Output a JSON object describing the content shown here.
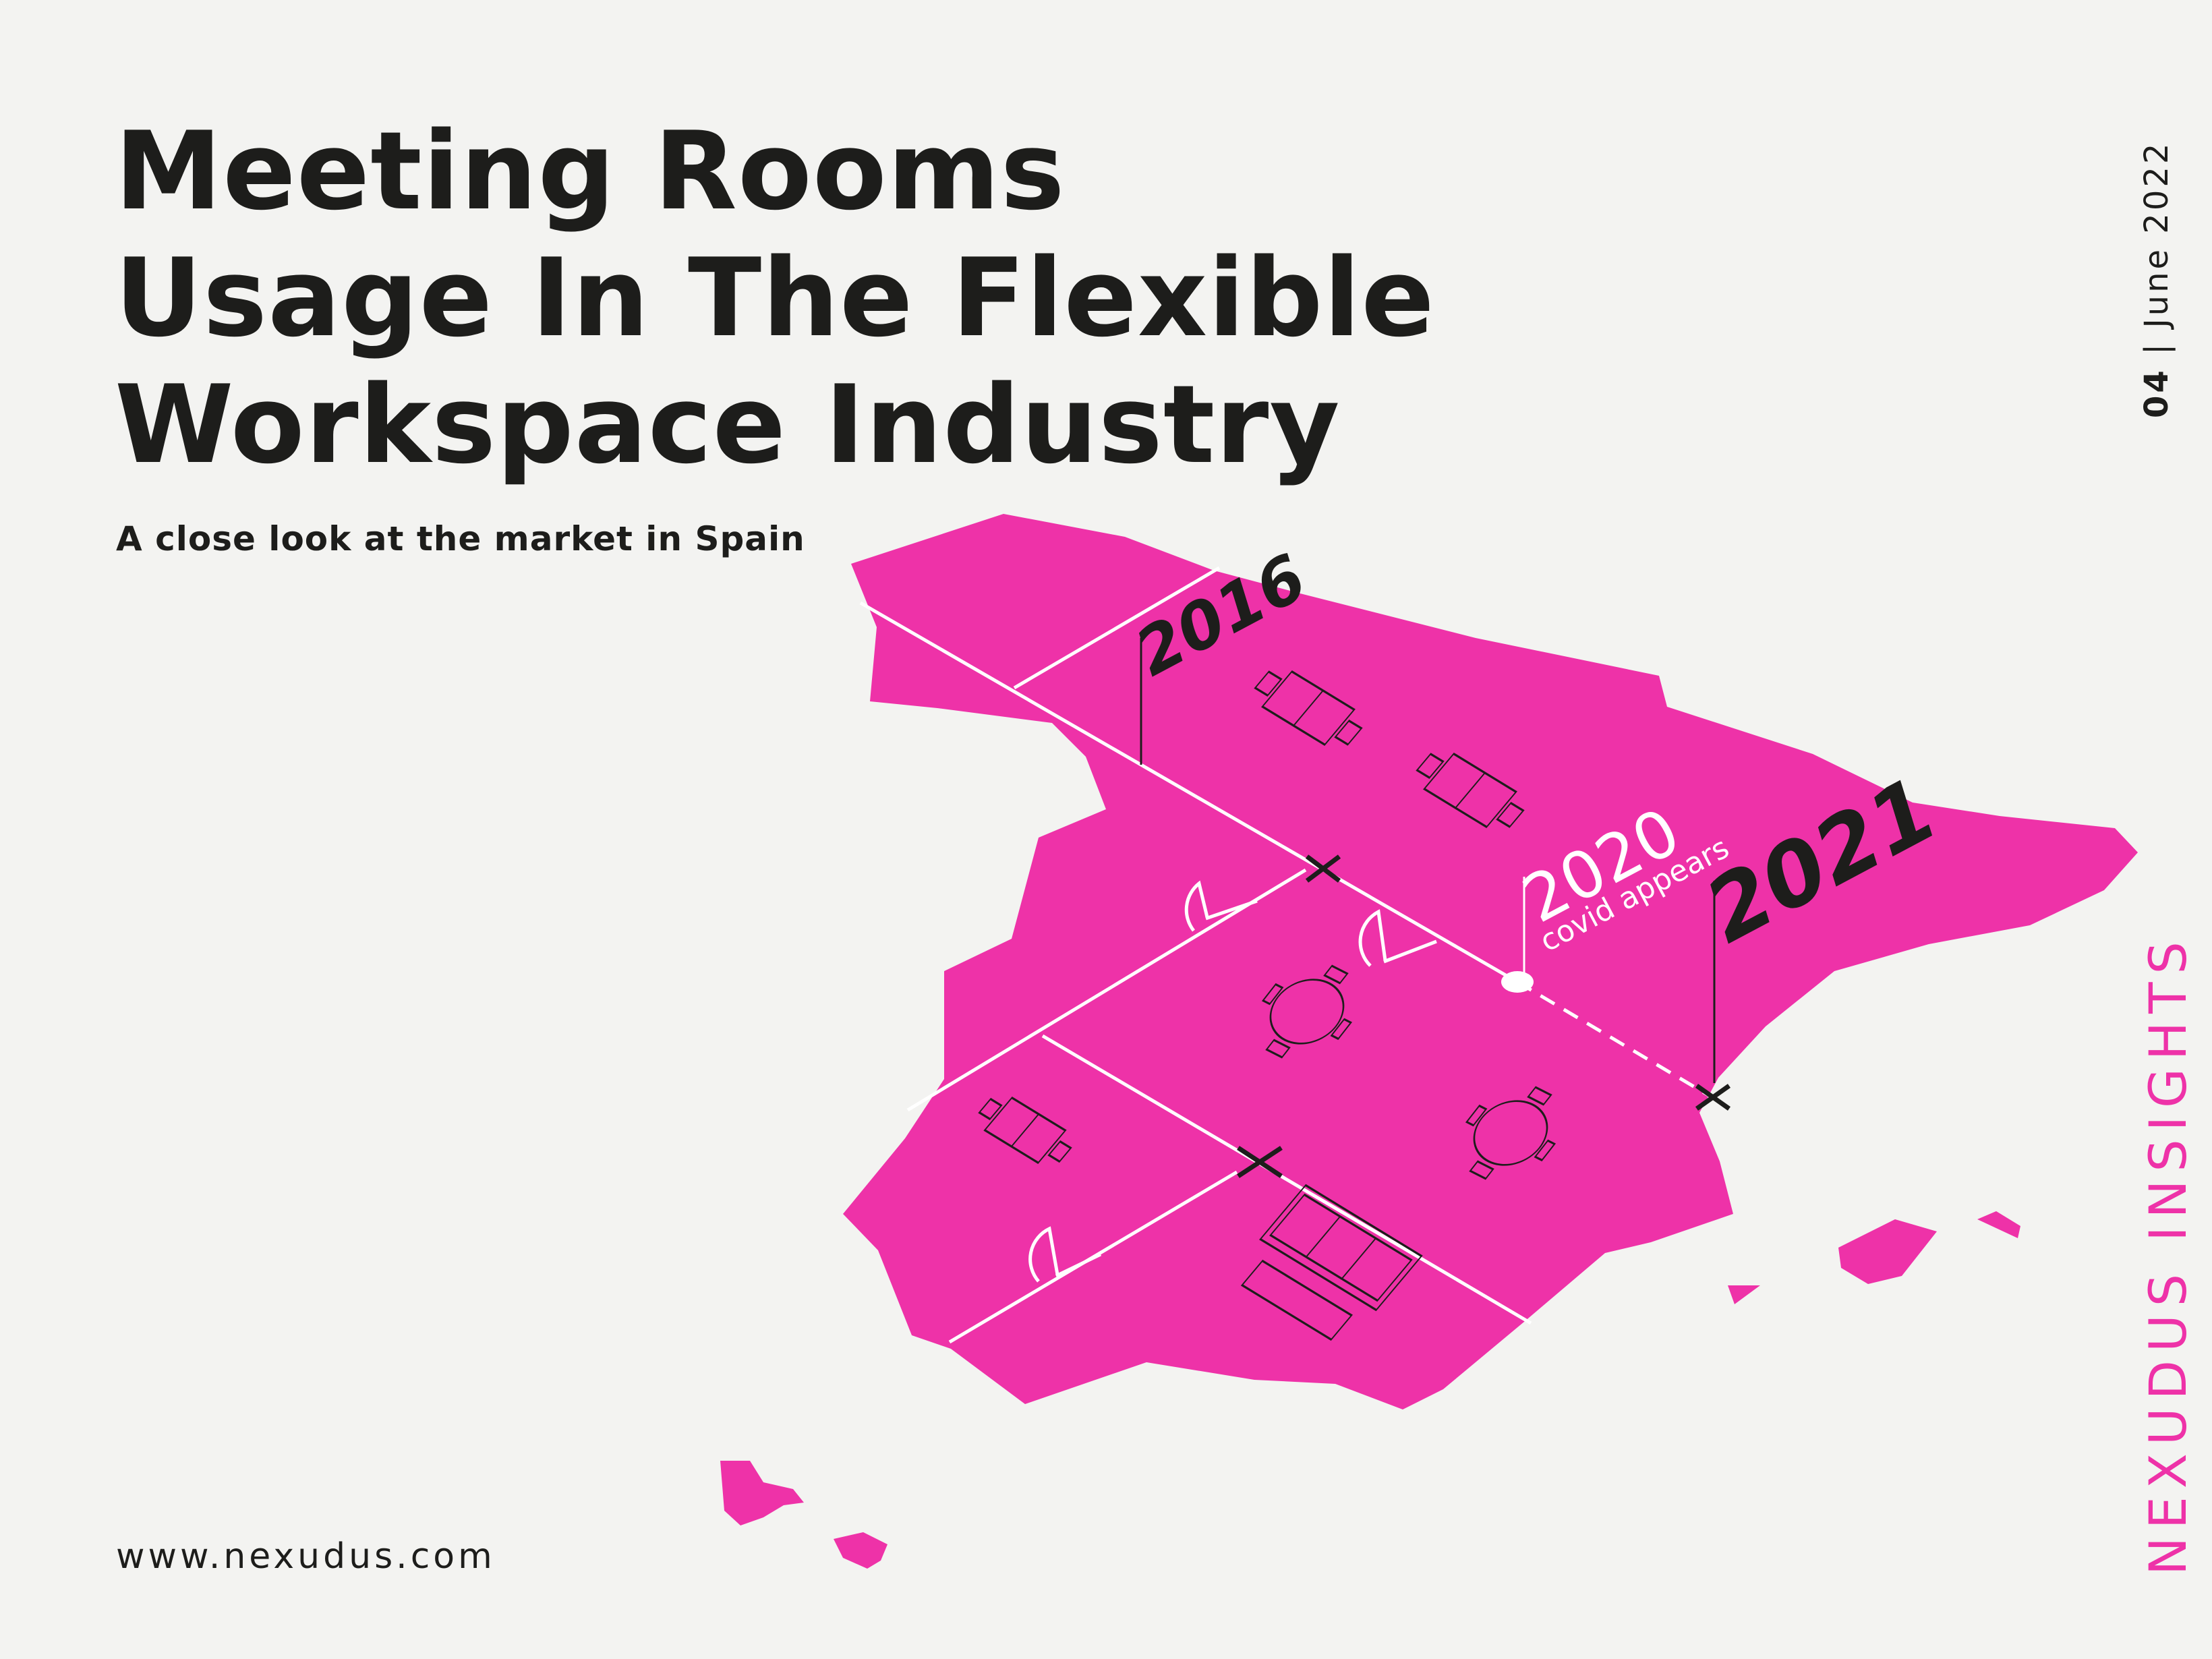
{
  "header": {
    "title_lines": [
      "Meeting Rooms",
      "Usage In The Flexible",
      "Workspace Industry"
    ],
    "subtitle": "A close look at the market in Spain"
  },
  "side": {
    "issue_number": "04",
    "issue_separator": "|",
    "issue_date": "June 2022",
    "brand": "NEXUDUS INSIGHTS"
  },
  "footer": {
    "website": "www.nexudus.com"
  },
  "timeline": {
    "start_year": "2016",
    "mid_year": "2020",
    "mid_note": "covid appears",
    "end_year": "2021"
  },
  "colors": {
    "background": "#f3f3f1",
    "map_fill": "#ee32a8",
    "text": "#1d1d1b",
    "line": "#ffffff"
  },
  "icons": [
    "meeting-table-icon",
    "round-table-icon",
    "sofa-icon",
    "door-icon",
    "x-marker-icon"
  ]
}
